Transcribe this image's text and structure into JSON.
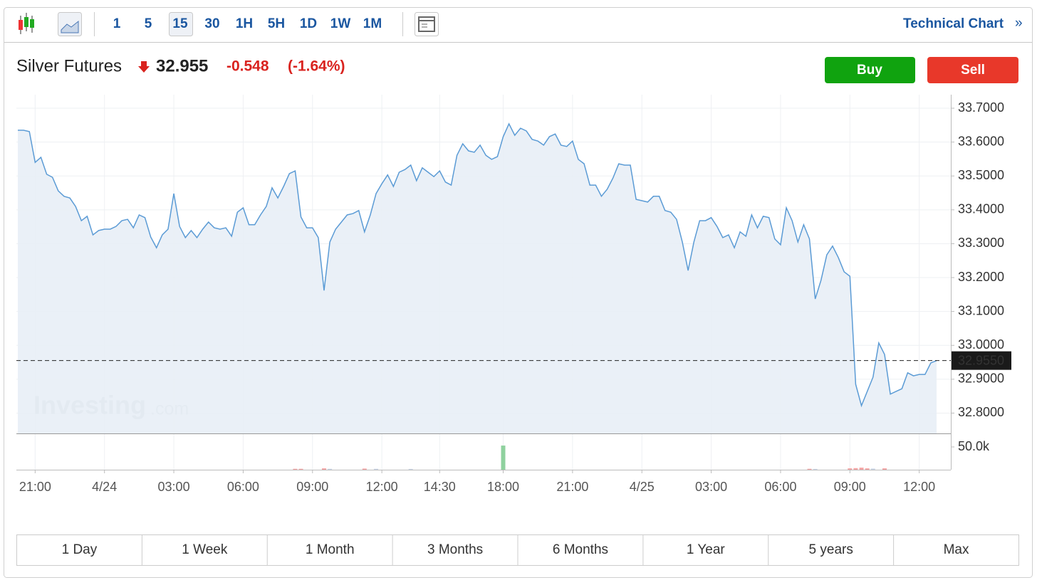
{
  "toolbar": {
    "intervals": [
      "1",
      "5",
      "15",
      "30",
      "1H",
      "5H",
      "1D",
      "1W",
      "1M"
    ],
    "selected_interval": 2,
    "technical_chart": "Technical Chart",
    "technical_chart_icon": "»"
  },
  "header": {
    "name": "Silver Futures",
    "price": "32.955",
    "change": "-0.548",
    "change_percent": "(-1.64%)"
  },
  "buttons": {
    "buy": "Buy",
    "sell": "Sell"
  },
  "logo": {
    "brand": "Investing",
    "suffix": ".com"
  },
  "ranges": [
    "1 Day",
    "1 Week",
    "1 Month",
    "3 Months",
    "6 Months",
    "1 Year",
    "5 years",
    "Max"
  ],
  "chart_data": {
    "type": "line",
    "color": "#5b9bd5",
    "fill": "#e8eef6",
    "grid": true,
    "values": [
      33.635,
      33.635,
      33.631,
      33.54,
      33.555,
      33.505,
      33.496,
      33.456,
      33.44,
      33.435,
      33.41,
      33.368,
      33.381,
      33.326,
      33.339,
      33.343,
      33.343,
      33.351,
      33.368,
      33.372,
      33.347,
      33.385,
      33.377,
      33.32,
      33.288,
      33.326,
      33.343,
      33.448,
      33.351,
      33.318,
      33.339,
      33.318,
      33.343,
      33.364,
      33.347,
      33.343,
      33.347,
      33.322,
      33.393,
      33.406,
      33.356,
      33.356,
      33.385,
      33.41,
      33.465,
      33.435,
      33.469,
      33.507,
      33.515,
      33.379,
      33.347,
      33.347,
      33.318,
      33.162,
      33.305,
      33.343,
      33.364,
      33.385,
      33.389,
      33.398,
      33.335,
      33.385,
      33.448,
      33.477,
      33.503,
      33.469,
      33.511,
      33.519,
      33.532,
      33.486,
      33.524,
      33.511,
      33.498,
      33.515,
      33.482,
      33.473,
      33.561,
      33.595,
      33.574,
      33.57,
      33.591,
      33.561,
      33.549,
      33.557,
      33.616,
      33.654,
      33.62,
      33.641,
      33.633,
      33.608,
      33.603,
      33.591,
      33.616,
      33.624,
      33.591,
      33.587,
      33.603,
      33.549,
      33.536,
      33.473,
      33.473,
      33.44,
      33.461,
      33.494,
      33.536,
      33.532,
      33.532,
      33.431,
      33.427,
      33.423,
      33.44,
      33.44,
      33.398,
      33.393,
      33.372,
      33.305,
      33.221,
      33.305,
      33.368,
      33.368,
      33.377,
      33.351,
      33.318,
      33.326,
      33.288,
      33.335,
      33.322,
      33.385,
      33.347,
      33.381,
      33.377,
      33.314,
      33.297,
      33.406,
      33.368,
      33.305,
      33.356,
      33.314,
      33.137,
      33.192,
      33.267,
      33.293,
      33.259,
      33.217,
      33.204,
      32.885,
      32.822,
      32.864,
      32.906,
      33.007,
      32.973,
      32.856,
      32.864,
      32.872,
      32.919,
      32.91,
      32.914,
      32.914,
      32.948,
      32.955
    ],
    "ylim": [
      32.74,
      33.74
    ],
    "yticks": [
      {
        "value": 32.8,
        "label": "32.8000"
      },
      {
        "value": 32.9,
        "label": "32.9000"
      },
      {
        "value": 33.0,
        "label": "33.0000"
      },
      {
        "value": 33.1,
        "label": "33.1000"
      },
      {
        "value": 33.2,
        "label": "33.2000"
      },
      {
        "value": 33.3,
        "label": "33.3000"
      },
      {
        "value": 33.4,
        "label": "33.4000"
      },
      {
        "value": 33.5,
        "label": "33.5000"
      },
      {
        "value": 33.6,
        "label": "33.6000"
      },
      {
        "value": 33.7,
        "label": "33.7000"
      }
    ],
    "xticks": [
      {
        "value": 3,
        "label": "21:00"
      },
      {
        "value": 15,
        "label": "4/24"
      },
      {
        "value": 27,
        "label": "03:00"
      },
      {
        "value": 39,
        "label": "06:00"
      },
      {
        "value": 51,
        "label": "09:00"
      },
      {
        "value": 63,
        "label": "12:00"
      },
      {
        "value": 73,
        "label": "14:30"
      },
      {
        "value": 84,
        "label": "18:00"
      },
      {
        "value": 96,
        "label": "21:00"
      },
      {
        "value": 108,
        "label": "4/25"
      },
      {
        "value": 120,
        "label": "03:00"
      },
      {
        "value": 132,
        "label": "06:00"
      },
      {
        "value": 144,
        "label": "09:00"
      },
      {
        "value": 156,
        "label": "12:00"
      }
    ],
    "last": {
      "value": 32.955,
      "label": "32.9550"
    },
    "volume": {
      "ylim": [
        0,
        79700
      ],
      "yticks": [
        {
          "value": 50000,
          "label": "50.0k"
        }
      ],
      "bars": [
        {
          "x": 48,
          "value": 2000,
          "color": "#f4a4a4"
        },
        {
          "x": 49,
          "value": 2000,
          "color": "#f4a4a4"
        },
        {
          "x": 53,
          "value": 3000,
          "color": "#f4a4a4"
        },
        {
          "x": 54,
          "value": 2000,
          "color": "#c9d4e6"
        },
        {
          "x": 60,
          "value": 2500,
          "color": "#f4a4a4"
        },
        {
          "x": 62,
          "value": 2000,
          "color": "#c9d4e6"
        },
        {
          "x": 68,
          "value": 1800,
          "color": "#c9d4e6"
        },
        {
          "x": 84,
          "value": 53000,
          "color": "#8fd19e"
        },
        {
          "x": 137,
          "value": 2000,
          "color": "#f4a4a4"
        },
        {
          "x": 138,
          "value": 1800,
          "color": "#c9d4e6"
        },
        {
          "x": 144,
          "value": 3000,
          "color": "#f4a4a4"
        },
        {
          "x": 145,
          "value": 3500,
          "color": "#f4a4a4"
        },
        {
          "x": 146,
          "value": 4500,
          "color": "#f4a4a4"
        },
        {
          "x": 147,
          "value": 3000,
          "color": "#f4a4a4"
        },
        {
          "x": 148,
          "value": 2500,
          "color": "#c9d4e6"
        },
        {
          "x": 150,
          "value": 3000,
          "color": "#f4a4a4"
        }
      ]
    }
  }
}
